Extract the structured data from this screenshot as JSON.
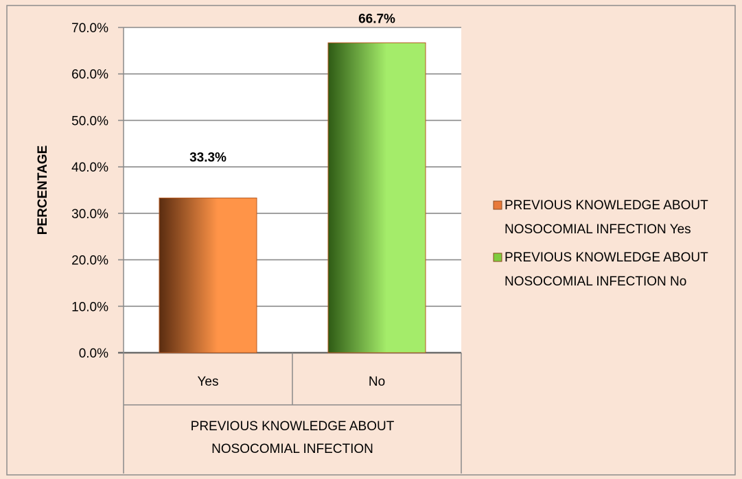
{
  "chart_data": {
    "type": "bar",
    "title": "",
    "ylabel": "PERCENTAGE",
    "xlabel": "",
    "group_label": [
      "PREVIOUS KNOWLEDGE ABOUT",
      "NOSOCOMIAL INFECTION"
    ],
    "categories": [
      "Yes",
      "No"
    ],
    "values": [
      33.3,
      66.7
    ],
    "data_labels": [
      "33.3%",
      "66.7%"
    ],
    "ylim": [
      0,
      70
    ],
    "ytick_values": [
      0,
      10,
      20,
      30,
      40,
      50,
      60,
      70
    ],
    "yticks": [
      "0.0%",
      "10.0%",
      "20.0%",
      "30.0%",
      "40.0%",
      "50.0%",
      "60.0%",
      "70.0%"
    ],
    "grid": true,
    "legend_position": "right",
    "legend": [
      {
        "line1": "PREVIOUS KNOWLEDGE ABOUT",
        "line2": "NOSOCOMIAL INFECTION Yes",
        "color": "#e8793a"
      },
      {
        "line1": "PREVIOUS KNOWLEDGE ABOUT",
        "line2": "NOSOCOMIAL INFECTION No",
        "color": "#7fcc3f"
      }
    ],
    "colors": {
      "background": "#fae4d6",
      "plot_area": "#ffffff",
      "grid": "#8a8a8a",
      "border": "#8c8c8c",
      "bar_yes_dark": "#5a2c10",
      "bar_yes_light": "#ff9448",
      "bar_no_dark": "#2e5a14",
      "bar_no_light": "#a4ec6a",
      "bar_outline": "#b85a20"
    }
  }
}
